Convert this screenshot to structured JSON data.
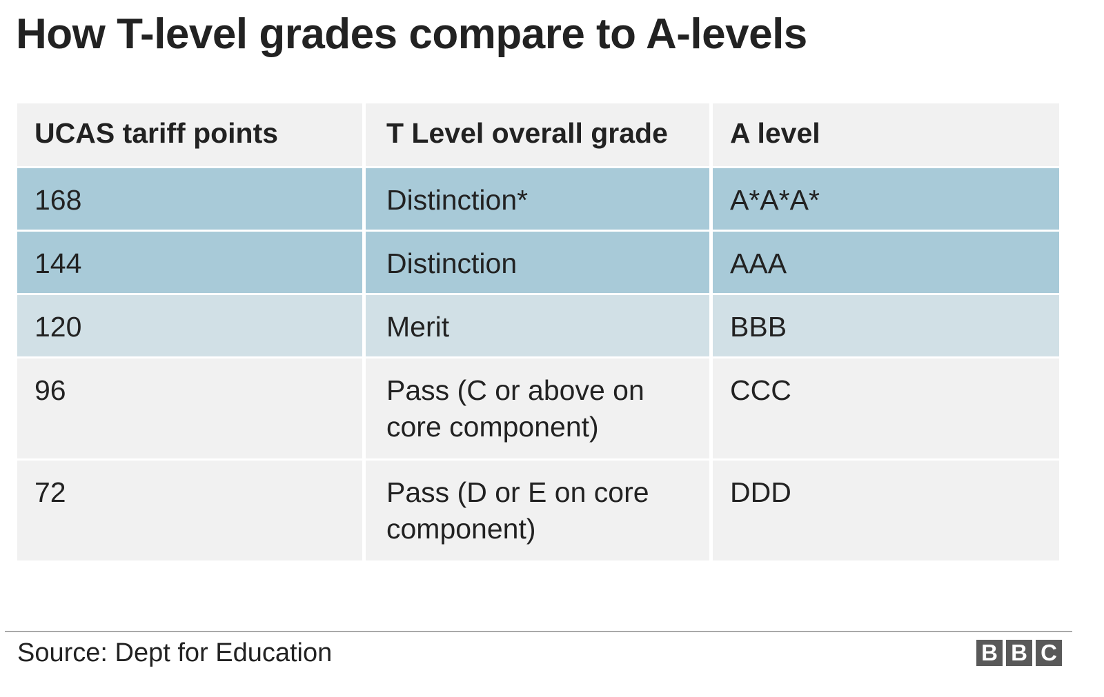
{
  "title": "How T-level grades compare to A-levels",
  "colors": {
    "header_bg": "#f1f1f1",
    "row_dark": "#a8cad8",
    "row_light": "#d1e0e6",
    "row_plain": "#f1f1f1",
    "text": "#222222"
  },
  "chart_data": {
    "type": "table",
    "title": "How T-level grades compare to A-levels",
    "columns": [
      "UCAS tariff points",
      "T Level overall grade",
      "A level"
    ],
    "rows": [
      {
        "points": "168",
        "t_level": "Distinction*",
        "a_level": "A*A*A*",
        "shade": "dark"
      },
      {
        "points": "144",
        "t_level": "Distinction",
        "a_level": "AAA",
        "shade": "dark"
      },
      {
        "points": "120",
        "t_level": "Merit",
        "a_level": "BBB",
        "shade": "light"
      },
      {
        "points": "96",
        "t_level": "Pass (C or above on core component)",
        "a_level": "CCC",
        "shade": "plain"
      },
      {
        "points": "72",
        "t_level": "Pass (D or E on core component)",
        "a_level": "DDD",
        "shade": "plain"
      }
    ]
  },
  "footer": {
    "source": "Source: Dept for Education",
    "logo_letters": [
      "B",
      "B",
      "C"
    ]
  }
}
